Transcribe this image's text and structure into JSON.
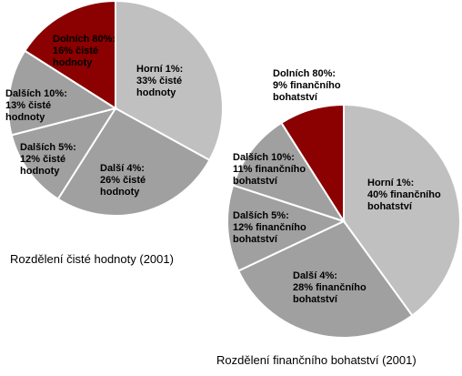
{
  "chart_data": [
    {
      "type": "pie",
      "title": "Rozdělení čisté hodnoty (2001)",
      "slices": [
        {
          "name": "Horní 1%",
          "value": 33,
          "label_lines": [
            "Horní 1%:",
            "33% čisté",
            "hodnoty"
          ],
          "color": "#c0c0c0",
          "text_color": "#000000"
        },
        {
          "name": "Další 4%",
          "value": 26,
          "label_lines": [
            "Další 4%:",
            "26% čisté",
            "hodnoty"
          ],
          "color": "#a0a0a0",
          "text_color": "#000000"
        },
        {
          "name": "Dalších 5%",
          "value": 12,
          "label_lines": [
            "Dalších 5%:",
            "12% čisté",
            "hodnoty"
          ],
          "color": "#a0a0a0",
          "text_color": "#000000"
        },
        {
          "name": "Dalších 10%",
          "value": 13,
          "label_lines": [
            "Dalších 10%:",
            "13% čisté",
            "hodnoty"
          ],
          "color": "#a0a0a0",
          "text_color": "#000000"
        },
        {
          "name": "Dolních 80%",
          "value": 16,
          "label_lines": [
            "Dolních 80%:",
            "16% čisté",
            "hodnoty"
          ],
          "color": "#8b0000",
          "text_color": "#000000"
        }
      ]
    },
    {
      "type": "pie",
      "title": "Rozdělení finančního bohatství (2001)",
      "slices": [
        {
          "name": "Horní 1%",
          "value": 40,
          "label_lines": [
            "Horní 1%:",
            "40% finančního",
            "bohatství"
          ],
          "color": "#c0c0c0",
          "text_color": "#000000"
        },
        {
          "name": "Další 4%",
          "value": 28,
          "label_lines": [
            "Další 4%:",
            "28% finančního",
            "bohatství"
          ],
          "color": "#a0a0a0",
          "text_color": "#000000"
        },
        {
          "name": "Dalších 5%",
          "value": 12,
          "label_lines": [
            "Dalších 5%:",
            "12% finančního",
            "bohatství"
          ],
          "color": "#a0a0a0",
          "text_color": "#000000"
        },
        {
          "name": "Dalších 10%",
          "value": 11,
          "label_lines": [
            "Dalších 10%:",
            "11% finančního",
            "bohatství"
          ],
          "color": "#a0a0a0",
          "text_color": "#000000"
        },
        {
          "name": "Dolních 80%",
          "value": 9,
          "label_lines": [
            "Dolních 80%:",
            "9% finančního",
            "bohatství"
          ],
          "color": "#8b0000",
          "text_color": "#000000"
        }
      ]
    }
  ]
}
